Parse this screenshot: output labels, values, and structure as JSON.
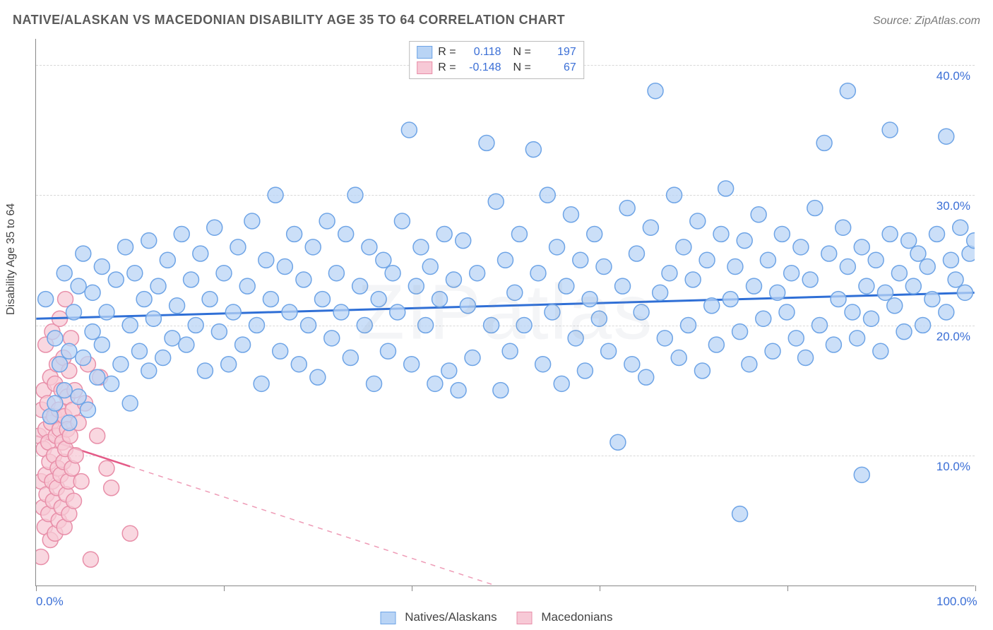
{
  "header": {
    "title": "NATIVE/ALASKAN VS MACEDONIAN DISABILITY AGE 35 TO 64 CORRELATION CHART",
    "source": "Source: ZipAtlas.com"
  },
  "chart": {
    "type": "scatter",
    "y_label": "Disability Age 35 to 64",
    "watermark": "ZIPatlas",
    "xlim": [
      0,
      100
    ],
    "ylim": [
      0,
      42
    ],
    "x_ticks": [
      0,
      20,
      40,
      60,
      80,
      100
    ],
    "x_tick_labels_shown": {
      "0": "0.0%",
      "100": "100.0%"
    },
    "y_gridlines": [
      10,
      20,
      30,
      40
    ],
    "y_gridline_labels": {
      "10": "10.0%",
      "20": "20.0%",
      "30": "30.0%",
      "40": "40.0%"
    },
    "marker_radius": 11,
    "marker_stroke_width": 1.5,
    "grid_color": "#d8d8d8",
    "axis_label_color": "#3b6fd6",
    "background_color": "#ffffff",
    "series": [
      {
        "name": "Natives/Alaskans",
        "fill": "#b9d4f5",
        "stroke": "#6ea4e6",
        "regression": {
          "y_at_x0": 20.5,
          "y_at_x100": 22.5,
          "stroke": "#2f6fd6",
          "width": 3,
          "solid_until_x": 100
        },
        "R": "0.118",
        "N": "197",
        "points": [
          [
            1,
            22
          ],
          [
            1.5,
            13
          ],
          [
            2,
            14
          ],
          [
            2,
            19
          ],
          [
            2.5,
            17
          ],
          [
            3,
            15
          ],
          [
            3,
            24
          ],
          [
            3.5,
            12.5
          ],
          [
            3.5,
            18
          ],
          [
            4,
            21
          ],
          [
            4.5,
            14.5
          ],
          [
            4.5,
            23
          ],
          [
            5,
            17.5
          ],
          [
            5,
            25.5
          ],
          [
            5.5,
            13.5
          ],
          [
            6,
            19.5
          ],
          [
            6,
            22.5
          ],
          [
            6.5,
            16
          ],
          [
            7,
            24.5
          ],
          [
            7,
            18.5
          ],
          [
            7.5,
            21
          ],
          [
            8,
            15.5
          ],
          [
            8.5,
            23.5
          ],
          [
            9,
            17
          ],
          [
            9.5,
            26
          ],
          [
            10,
            20
          ],
          [
            10,
            14
          ],
          [
            10.5,
            24
          ],
          [
            11,
            18
          ],
          [
            11.5,
            22
          ],
          [
            12,
            26.5
          ],
          [
            12,
            16.5
          ],
          [
            12.5,
            20.5
          ],
          [
            13,
            23
          ],
          [
            13.5,
            17.5
          ],
          [
            14,
            25
          ],
          [
            14.5,
            19
          ],
          [
            15,
            21.5
          ],
          [
            15.5,
            27
          ],
          [
            16,
            18.5
          ],
          [
            16.5,
            23.5
          ],
          [
            17,
            20
          ],
          [
            17.5,
            25.5
          ],
          [
            18,
            16.5
          ],
          [
            18.5,
            22
          ],
          [
            19,
            27.5
          ],
          [
            19.5,
            19.5
          ],
          [
            20,
            24
          ],
          [
            20.5,
            17
          ],
          [
            21,
            21
          ],
          [
            21.5,
            26
          ],
          [
            22,
            18.5
          ],
          [
            22.5,
            23
          ],
          [
            23,
            28
          ],
          [
            23.5,
            20
          ],
          [
            24,
            15.5
          ],
          [
            24.5,
            25
          ],
          [
            25,
            22
          ],
          [
            25.5,
            30
          ],
          [
            26,
            18
          ],
          [
            26.5,
            24.5
          ],
          [
            27,
            21
          ],
          [
            27.5,
            27
          ],
          [
            28,
            17
          ],
          [
            28.5,
            23.5
          ],
          [
            29,
            20
          ],
          [
            29.5,
            26
          ],
          [
            30,
            16
          ],
          [
            30.5,
            22
          ],
          [
            31,
            28
          ],
          [
            31.5,
            19
          ],
          [
            32,
            24
          ],
          [
            32.5,
            21
          ],
          [
            33,
            27
          ],
          [
            33.5,
            17.5
          ],
          [
            34,
            30
          ],
          [
            34.5,
            23
          ],
          [
            35,
            20
          ],
          [
            35.5,
            26
          ],
          [
            36,
            15.5
          ],
          [
            36.5,
            22
          ],
          [
            37,
            25
          ],
          [
            37.5,
            18
          ],
          [
            38,
            24
          ],
          [
            38.5,
            21
          ],
          [
            39,
            28
          ],
          [
            39.75,
            35
          ],
          [
            40,
            17
          ],
          [
            40.5,
            23
          ],
          [
            41,
            26
          ],
          [
            41.5,
            20
          ],
          [
            42,
            24.5
          ],
          [
            42.5,
            15.5
          ],
          [
            43,
            22
          ],
          [
            43.5,
            27
          ],
          [
            44,
            16.5
          ],
          [
            44.5,
            23.5
          ],
          [
            45,
            15
          ],
          [
            45.5,
            26.5
          ],
          [
            46,
            21.5
          ],
          [
            46.5,
            17.5
          ],
          [
            47,
            24
          ],
          [
            48,
            34
          ],
          [
            48.5,
            20
          ],
          [
            49,
            29.5
          ],
          [
            49.5,
            15
          ],
          [
            50,
            25
          ],
          [
            50.5,
            18
          ],
          [
            51,
            22.5
          ],
          [
            51.5,
            27
          ],
          [
            52,
            20
          ],
          [
            53,
            33.5
          ],
          [
            53.5,
            24
          ],
          [
            54,
            17
          ],
          [
            54.5,
            30
          ],
          [
            55,
            21
          ],
          [
            55.5,
            26
          ],
          [
            56,
            15.5
          ],
          [
            56.5,
            23
          ],
          [
            57,
            28.5
          ],
          [
            57.5,
            19
          ],
          [
            58,
            25
          ],
          [
            58.5,
            16.5
          ],
          [
            59,
            22
          ],
          [
            59.5,
            27
          ],
          [
            60,
            20.5
          ],
          [
            60.5,
            24.5
          ],
          [
            61,
            18
          ],
          [
            62,
            11
          ],
          [
            62.5,
            23
          ],
          [
            63,
            29
          ],
          [
            63.5,
            17
          ],
          [
            64,
            25.5
          ],
          [
            64.5,
            21
          ],
          [
            65,
            16
          ],
          [
            65.5,
            27.5
          ],
          [
            66,
            38
          ],
          [
            66.5,
            22.5
          ],
          [
            67,
            19
          ],
          [
            67.5,
            24
          ],
          [
            68,
            30
          ],
          [
            68.5,
            17.5
          ],
          [
            69,
            26
          ],
          [
            69.5,
            20
          ],
          [
            70,
            23.5
          ],
          [
            70.5,
            28
          ],
          [
            71,
            16.5
          ],
          [
            71.5,
            25
          ],
          [
            72,
            21.5
          ],
          [
            72.5,
            18.5
          ],
          [
            73,
            27
          ],
          [
            73.5,
            30.5
          ],
          [
            74,
            22
          ],
          [
            74.5,
            24.5
          ],
          [
            75,
            19.5
          ],
          [
            75,
            5.5
          ],
          [
            75.5,
            26.5
          ],
          [
            76,
            17
          ],
          [
            76.5,
            23
          ],
          [
            77,
            28.5
          ],
          [
            77.5,
            20.5
          ],
          [
            78,
            25
          ],
          [
            78.5,
            18
          ],
          [
            79,
            22.5
          ],
          [
            79.5,
            27
          ],
          [
            80,
            21
          ],
          [
            80.5,
            24
          ],
          [
            81,
            19
          ],
          [
            81.5,
            26
          ],
          [
            82,
            17.5
          ],
          [
            82.5,
            23.5
          ],
          [
            83,
            29
          ],
          [
            83.5,
            20
          ],
          [
            84,
            34
          ],
          [
            84.5,
            25.5
          ],
          [
            85,
            18.5
          ],
          [
            85.5,
            22
          ],
          [
            86,
            27.5
          ],
          [
            86.5,
            24.5
          ],
          [
            86.5,
            38
          ],
          [
            87,
            21
          ],
          [
            87.5,
            19
          ],
          [
            88,
            26
          ],
          [
            88,
            8.5
          ],
          [
            88.5,
            23
          ],
          [
            89,
            20.5
          ],
          [
            89.5,
            25
          ],
          [
            90,
            18
          ],
          [
            91,
            35
          ],
          [
            90.5,
            22.5
          ],
          [
            91,
            27
          ],
          [
            91.5,
            21.5
          ],
          [
            92,
            24
          ],
          [
            92.5,
            19.5
          ],
          [
            93,
            26.5
          ],
          [
            93.5,
            23
          ],
          [
            94,
            25.5
          ],
          [
            94.5,
            20
          ],
          [
            95,
            24.5
          ],
          [
            95.5,
            22
          ],
          [
            96,
            27
          ],
          [
            97,
            34.5
          ],
          [
            97,
            21
          ],
          [
            97.5,
            25
          ],
          [
            98,
            23.5
          ],
          [
            98.5,
            27.5
          ],
          [
            99,
            22.5
          ],
          [
            99.5,
            25.5
          ],
          [
            100,
            26.5
          ]
        ]
      },
      {
        "name": "Macedonians",
        "fill": "#f7c9d6",
        "stroke": "#e88fa9",
        "regression": {
          "y_at_x0": 11.5,
          "y_at_x100": -12,
          "stroke": "#e45a87",
          "width": 2.5,
          "solid_until_x": 10
        },
        "R": "-0.148",
        "N": "67",
        "points": [
          [
            0.3,
            11.5
          ],
          [
            0.5,
            2.2
          ],
          [
            0.5,
            8
          ],
          [
            0.6,
            13.5
          ],
          [
            0.7,
            6
          ],
          [
            0.8,
            10.5
          ],
          [
            0.8,
            15
          ],
          [
            0.9,
            4.5
          ],
          [
            1,
            12
          ],
          [
            1,
            8.5
          ],
          [
            1,
            18.5
          ],
          [
            1.1,
            7
          ],
          [
            1.2,
            14
          ],
          [
            1.3,
            5.5
          ],
          [
            1.3,
            11
          ],
          [
            1.4,
            9.5
          ],
          [
            1.5,
            16
          ],
          [
            1.5,
            3.5
          ],
          [
            1.6,
            12.5
          ],
          [
            1.7,
            8
          ],
          [
            1.7,
            19.5
          ],
          [
            1.8,
            6.5
          ],
          [
            1.9,
            13
          ],
          [
            1.9,
            10
          ],
          [
            2,
            4
          ],
          [
            2,
            15.5
          ],
          [
            2.1,
            11.5
          ],
          [
            2.2,
            7.5
          ],
          [
            2.2,
            17
          ],
          [
            2.3,
            9
          ],
          [
            2.4,
            13.5
          ],
          [
            2.4,
            5
          ],
          [
            2.5,
            12
          ],
          [
            2.5,
            20.5
          ],
          [
            2.6,
            8.5
          ],
          [
            2.7,
            15
          ],
          [
            2.7,
            6
          ],
          [
            2.8,
            11
          ],
          [
            2.9,
            17.5
          ],
          [
            2.9,
            9.5
          ],
          [
            3,
            13
          ],
          [
            3,
            4.5
          ],
          [
            3.1,
            22
          ],
          [
            3.1,
            10.5
          ],
          [
            3.2,
            7
          ],
          [
            3.3,
            14.5
          ],
          [
            3.3,
            12
          ],
          [
            3.4,
            8
          ],
          [
            3.5,
            16.5
          ],
          [
            3.5,
            5.5
          ],
          [
            3.6,
            11.5
          ],
          [
            3.7,
            19
          ],
          [
            3.8,
            9
          ],
          [
            3.9,
            13.5
          ],
          [
            4,
            6.5
          ],
          [
            4.1,
            15
          ],
          [
            4.2,
            10
          ],
          [
            4.5,
            12.5
          ],
          [
            4.8,
            8
          ],
          [
            5.2,
            14
          ],
          [
            5.5,
            17
          ],
          [
            5.8,
            2
          ],
          [
            6.5,
            11.5
          ],
          [
            6.8,
            16
          ],
          [
            7.5,
            9
          ],
          [
            8,
            7.5
          ],
          [
            10,
            4
          ]
        ]
      }
    ]
  },
  "legend_bottom": {
    "series1_label": "Natives/Alaskans",
    "series2_label": "Macedonians"
  }
}
